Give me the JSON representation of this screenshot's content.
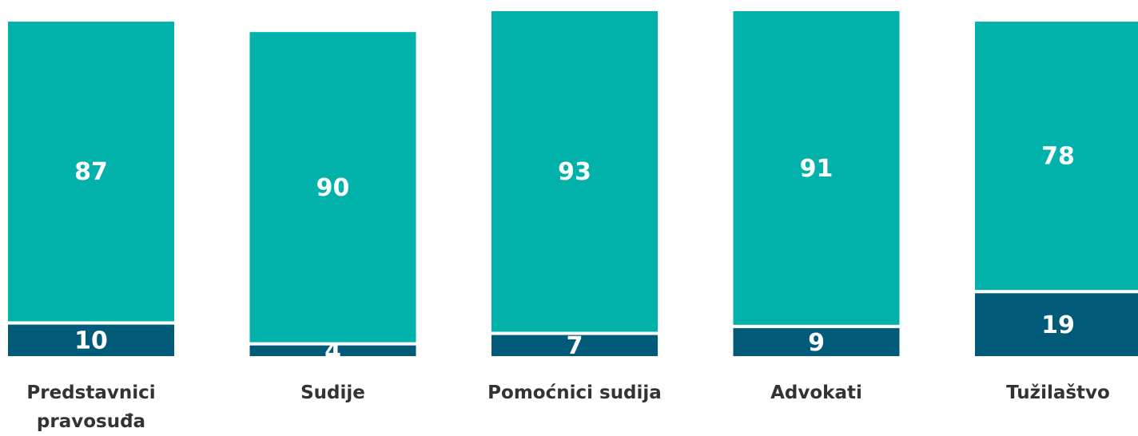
{
  "chart_data": {
    "type": "stacked_bar",
    "categories": [
      "Predstavnici pravosuđa",
      "Sudije",
      "Pomoćnici sudija",
      "Advokati",
      "Tužilaštvo"
    ],
    "series": [
      {
        "color": "#005a78",
        "values": [
          10,
          4,
          7,
          9,
          19
        ]
      },
      {
        "color": "#00b2a9",
        "values": [
          87,
          90,
          93,
          91,
          78
        ]
      }
    ],
    "ylim": [
      0,
      100
    ]
  }
}
